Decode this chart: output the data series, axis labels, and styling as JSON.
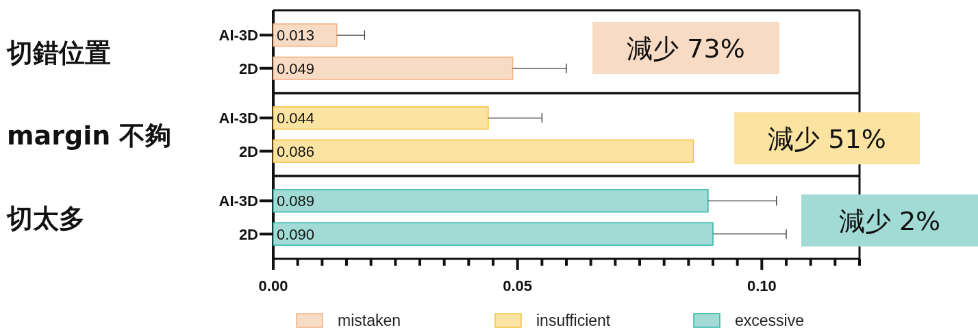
{
  "chart_data": [
    {
      "type": "bar",
      "orientation": "horizontal",
      "ylabel": "切錯位置",
      "categories": [
        "AI-3D",
        "2D"
      ],
      "series": [
        {
          "name": "mistaken",
          "color": "#f8dbc4",
          "values": [
            0.013,
            0.049
          ],
          "value_labels": [
            "0.013",
            "0.049"
          ],
          "errors": [
            [
              0.013,
              0.0187
            ],
            [
              0.049,
              0.06
            ]
          ]
        }
      ],
      "annotations": [
        "減少 73%"
      ],
      "xlim": [
        0,
        0.12
      ],
      "tick_labels": "y"
    },
    {
      "type": "bar",
      "orientation": "horizontal",
      "ylabel": "margin 不夠",
      "categories": [
        "AI-3D",
        "2D"
      ],
      "series": [
        {
          "name": "insufficient",
          "color": "#fbe3a1",
          "values": [
            0.044,
            0.086
          ],
          "value_labels": [
            "0.044",
            "0.086"
          ],
          "errors": [
            [
              0.044,
              0.055
            ],
            null
          ]
        }
      ],
      "annotations": [
        "減少 51%"
      ],
      "xlim": [
        0,
        0.12
      ],
      "tick_labels": "y"
    },
    {
      "type": "bar",
      "orientation": "horizontal",
      "ylabel": "切太多",
      "categories": [
        "AI-3D",
        "2D"
      ],
      "series": [
        {
          "name": "excessive",
          "color": "#a2dbd6",
          "values": [
            0.089,
            0.09
          ],
          "value_labels": [
            "0.089",
            "0.090"
          ],
          "errors": [
            [
              0.089,
              0.103
            ],
            [
              0.09,
              0.105
            ]
          ]
        }
      ],
      "annotations": [
        "減少 2%"
      ],
      "xlim": [
        0,
        0.12
      ],
      "xticks": [
        {
          "value": 0,
          "label": "0.00"
        },
        {
          "value": 0.005,
          "label": null
        },
        {
          "value": 0.01,
          "label": null
        },
        {
          "value": 0.015,
          "label": null
        },
        {
          "value": 0.02,
          "label": null
        },
        {
          "value": 0.025,
          "label": null
        },
        {
          "value": 0.03,
          "label": null
        },
        {
          "value": 0.035,
          "label": null
        },
        {
          "value": 0.04,
          "label": null
        },
        {
          "value": 0.045,
          "label": null
        },
        {
          "value": 0.05,
          "label": "0.05"
        },
        {
          "value": 0.055,
          "label": null
        },
        {
          "value": 0.06,
          "label": null
        },
        {
          "value": 0.065,
          "label": null
        },
        {
          "value": 0.07,
          "label": null
        },
        {
          "value": 0.075,
          "label": null
        },
        {
          "value": 0.08,
          "label": null
        },
        {
          "value": 0.085,
          "label": null
        },
        {
          "value": 0.09,
          "label": null
        },
        {
          "value": 0.095,
          "label": null
        },
        {
          "value": 0.1,
          "label": "0.10"
        },
        {
          "value": 0.105,
          "label": null
        },
        {
          "value": 0.11,
          "label": null
        },
        {
          "value": 0.115,
          "label": null
        },
        {
          "value": 0.12,
          "label": null
        }
      ],
      "legend": "bottom"
    }
  ]
}
